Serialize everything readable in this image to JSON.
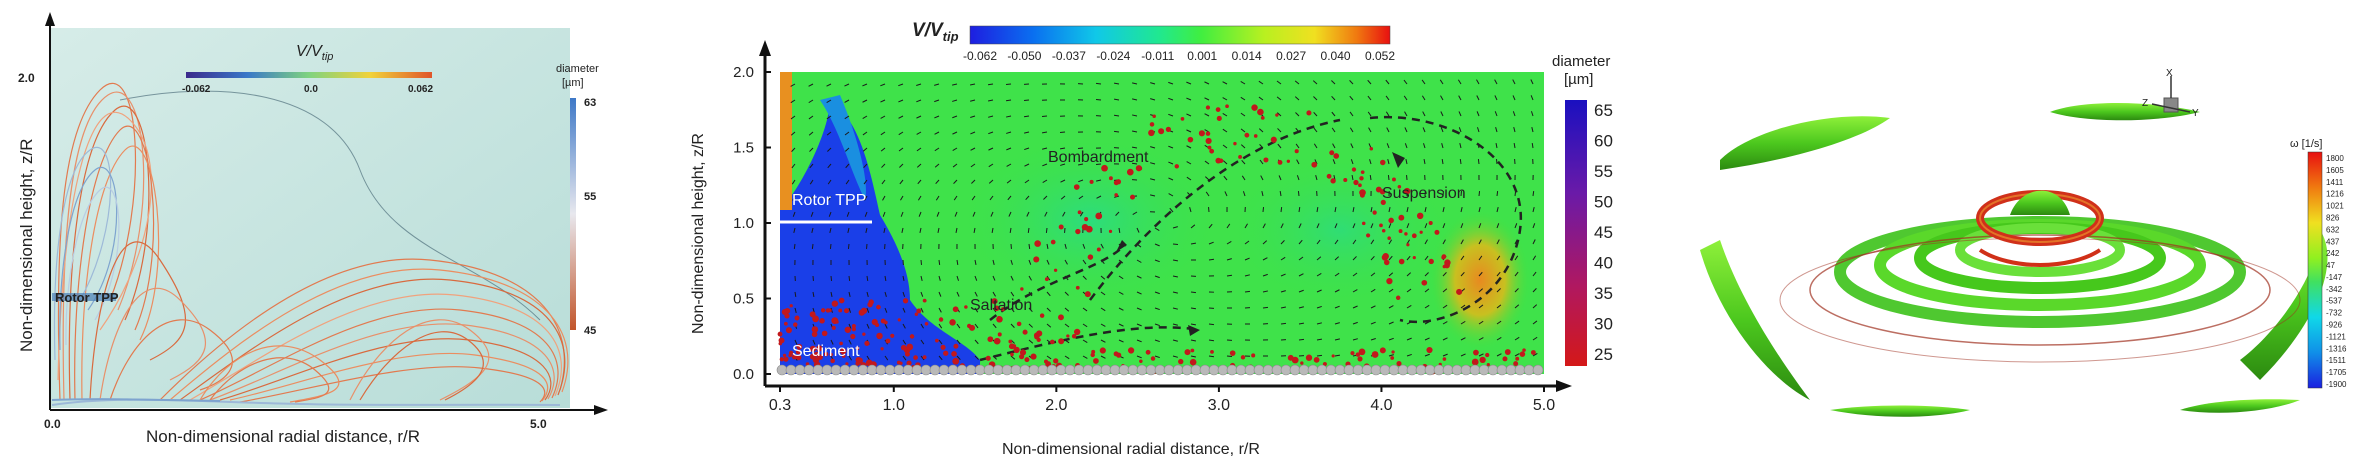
{
  "left": {
    "colorbar_title_html": "V/V",
    "colorbar_title_sub": "tip",
    "colorbar_ticks": [
      "-0.062",
      "0.0",
      "0.062"
    ],
    "diameter_title_line1": "diameter",
    "diameter_title_line2": "[µm]",
    "diameter_ticks": [
      "63",
      "55",
      "45"
    ],
    "ylabel": "Non-dimensional height, z/R",
    "xlabel": "Non-dimensional radial distance, r/R",
    "y_top": "2.0",
    "x_start": "0.0",
    "x_end": "5.0",
    "rotor_label": "Rotor TPP"
  },
  "mid": {
    "colorbar_title": "V/V",
    "colorbar_title_sub": "tip",
    "colorbar_ticks": [
      "-0.062",
      "-0.050",
      "-0.037",
      "-0.024",
      "-0.011",
      "0.001",
      "0.014",
      "0.027",
      "0.040",
      "0.052"
    ],
    "diameter_title_line1": "diameter",
    "diameter_title_line2": "[µm]",
    "diameter_ticks": [
      "65",
      "60",
      "55",
      "50",
      "45",
      "40",
      "35",
      "30",
      "25"
    ],
    "ylabel": "Non-dimensional height, z/R",
    "xlabel": "Non-dimensional radial distance, r/R",
    "yticks": [
      "2.0",
      "1.5",
      "1.0",
      "0.5",
      "0.0"
    ],
    "xticks": [
      "0.3",
      "1.0",
      "2.0",
      "3.0",
      "4.0",
      "5.0"
    ],
    "labels": {
      "bombardment": "Bombardment",
      "suspension": "Suspension",
      "rotor": "Rotor TPP",
      "saltation": "Saltation",
      "sediment": "Sediment"
    }
  },
  "right": {
    "colorbar_title": "ω [1/s]",
    "colorbar_ticks": [
      "1800",
      "1605",
      "1411",
      "1216",
      "1021",
      "826",
      "632",
      "437",
      "242",
      "47",
      "-147",
      "-342",
      "-537",
      "-732",
      "-926",
      "-1121",
      "-1316",
      "-1511",
      "-1705",
      "-1900"
    ],
    "axis_labels": {
      "x": "X",
      "y": "Y",
      "z": "Z"
    }
  }
}
